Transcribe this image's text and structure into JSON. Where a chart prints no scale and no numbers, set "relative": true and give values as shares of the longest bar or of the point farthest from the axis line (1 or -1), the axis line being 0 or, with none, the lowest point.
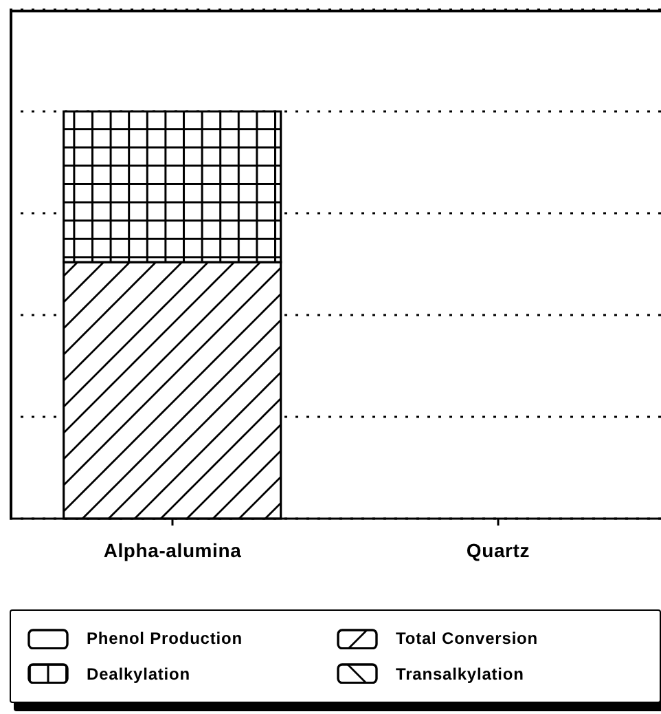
{
  "chart_data": {
    "type": "bar",
    "stacked": true,
    "relative": true,
    "categories": [
      "Alpha-alumina",
      "Quartz"
    ],
    "series": [
      {
        "name": "Phenol Production",
        "color": "#000000",
        "values": [
          0,
          0
        ]
      },
      {
        "name": "Total Conversion",
        "color": "#000000",
        "values": [
          0.63,
          0
        ]
      },
      {
        "name": "Dealkylation",
        "color": "#000000",
        "values": [
          0.37,
          0
        ]
      },
      {
        "name": "Transalkylation",
        "color": "#000000",
        "values": [
          0,
          0
        ]
      }
    ],
    "grid": "y",
    "legend": "bottom"
  }
}
